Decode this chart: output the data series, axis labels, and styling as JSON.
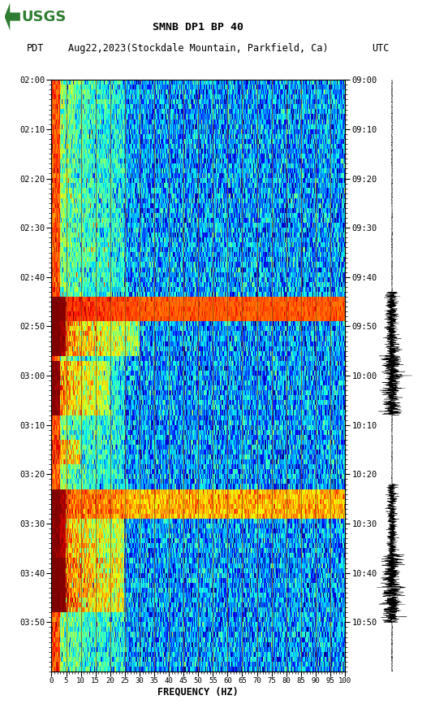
{
  "title_line1": "SMNB DP1 BP 40",
  "title_line2_pdt": "PDT",
  "title_line2_mid": "Aug22,2023(Stockdale Mountain, Parkfield, Ca)",
  "title_line2_utc": "UTC",
  "freq_label": "FREQUENCY (HZ)",
  "freq_ticks": [
    0,
    5,
    10,
    15,
    20,
    25,
    30,
    35,
    40,
    45,
    50,
    55,
    60,
    65,
    70,
    75,
    80,
    85,
    90,
    95,
    100
  ],
  "time_left": [
    "02:00",
    "02:10",
    "02:20",
    "02:30",
    "02:40",
    "02:50",
    "03:00",
    "03:10",
    "03:20",
    "03:30",
    "03:40",
    "03:50"
  ],
  "time_right": [
    "09:00",
    "09:10",
    "09:20",
    "09:30",
    "09:40",
    "09:50",
    "10:00",
    "10:10",
    "10:20",
    "10:30",
    "10:40",
    "10:50"
  ],
  "time_positions": [
    0,
    10,
    20,
    30,
    40,
    50,
    60,
    70,
    80,
    90,
    100,
    110
  ],
  "bg_color": "#ffffff",
  "spectrogram_colormap": "jet",
  "vertical_line_color": "#8B4513",
  "vertical_line_freq": [
    5,
    10,
    15,
    20,
    25,
    30,
    35,
    40,
    45,
    50,
    55,
    60,
    65,
    70,
    75,
    80,
    85,
    90,
    95,
    100
  ],
  "usgs_green": "#2e7d32",
  "fig_width": 5.52,
  "fig_height": 8.93,
  "dpi": 100,
  "seed": 42,
  "n_time": 120,
  "n_freq": 500
}
